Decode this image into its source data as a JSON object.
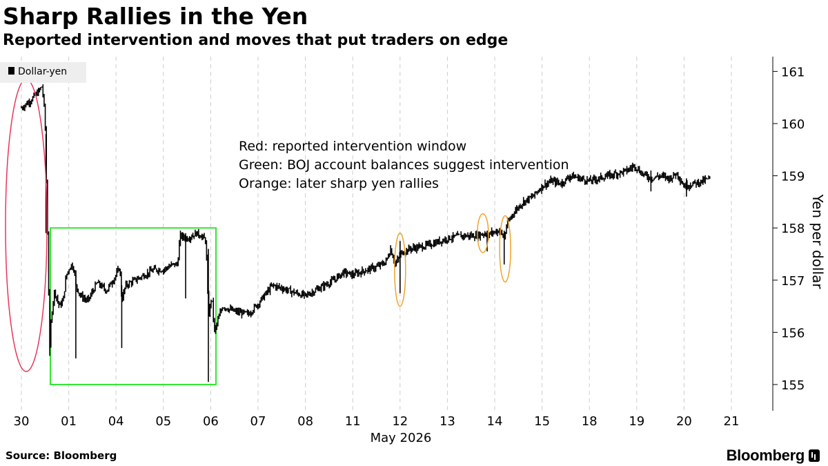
{
  "header": {
    "title": "Sharp Rallies in the Yen",
    "subtitle": "Reported intervention and moves that put traders on edge"
  },
  "footer": {
    "source": "Source: Bloomberg",
    "brand": "Bloomberg"
  },
  "colors": {
    "series": "#000000",
    "grid": "#cccccc",
    "red": "#e8355a",
    "green": "#33e633",
    "orange": "#f0a22a"
  },
  "chart_data": {
    "type": "line",
    "style": "intraday price bars (high-low)",
    "title": "Sharp Rallies in the Yen",
    "subtitle": "Reported intervention and moves that put traders on edge",
    "legend": {
      "entries": [
        "Dollar-yen"
      ],
      "placement": "top-left"
    },
    "xlabel": "May 2026",
    "ylabel": "Yen per dollar",
    "y_axis_side": "right",
    "ylim": [
      154.7,
      161.2
    ],
    "yticks": [
      155,
      156,
      157,
      158,
      159,
      160,
      161
    ],
    "x_tick_labels": [
      "30",
      "01",
      "04",
      "05",
      "06",
      "07",
      "08",
      "11",
      "12",
      "13",
      "14",
      "15",
      "18",
      "19",
      "20",
      "21"
    ],
    "grid": "vertical dashed",
    "annotations": [
      "Red: reported intervention window",
      "Green: BOJ account balances suggest intervention",
      "Orange: later sharp yen rallies"
    ],
    "series": [
      {
        "name": "Dollar-yen",
        "x_unit": "trading session (0 = 30)",
        "points": [
          [
            0.0,
            160.3
          ],
          [
            0.2,
            160.45
          ],
          [
            0.35,
            160.6
          ],
          [
            0.44,
            160.72
          ],
          [
            0.5,
            160.1
          ],
          [
            0.52,
            159.2
          ],
          [
            0.55,
            158.0
          ],
          [
            0.58,
            156.6
          ],
          [
            0.6,
            155.7
          ],
          [
            0.63,
            156.3
          ],
          [
            0.7,
            156.8
          ],
          [
            0.8,
            156.5
          ],
          [
            0.88,
            156.6
          ],
          [
            0.95,
            157.1
          ],
          [
            1.05,
            157.3
          ],
          [
            1.12,
            157.2
          ],
          [
            1.15,
            156.9
          ],
          [
            1.25,
            156.7
          ],
          [
            1.4,
            156.6
          ],
          [
            1.6,
            156.95
          ],
          [
            1.8,
            156.8
          ],
          [
            2.0,
            157.1
          ],
          [
            2.08,
            157.25
          ],
          [
            2.12,
            156.6
          ],
          [
            2.2,
            156.9
          ],
          [
            2.4,
            157.0
          ],
          [
            2.6,
            157.1
          ],
          [
            2.8,
            157.2
          ],
          [
            3.0,
            157.2
          ],
          [
            3.2,
            157.3
          ],
          [
            3.3,
            157.3
          ],
          [
            3.35,
            157.85
          ],
          [
            3.5,
            157.8
          ],
          [
            3.7,
            157.9
          ],
          [
            3.8,
            157.85
          ],
          [
            3.9,
            157.75
          ],
          [
            3.95,
            156.3
          ],
          [
            4.02,
            156.7
          ],
          [
            4.08,
            156.0
          ],
          [
            4.14,
            156.2
          ],
          [
            4.25,
            156.5
          ],
          [
            4.5,
            156.4
          ],
          [
            4.8,
            156.35
          ],
          [
            5.0,
            156.55
          ],
          [
            5.3,
            156.9
          ],
          [
            5.5,
            156.85
          ],
          [
            5.8,
            156.75
          ],
          [
            6.0,
            156.7
          ],
          [
            6.2,
            156.8
          ],
          [
            6.4,
            156.9
          ],
          [
            6.6,
            157.0
          ],
          [
            6.8,
            157.15
          ],
          [
            7.0,
            157.1
          ],
          [
            7.3,
            157.2
          ],
          [
            7.5,
            157.25
          ],
          [
            7.7,
            157.35
          ],
          [
            7.8,
            157.6
          ],
          [
            7.9,
            157.3
          ],
          [
            7.96,
            157.4
          ],
          [
            8.0,
            157.5
          ],
          [
            8.2,
            157.6
          ],
          [
            8.5,
            157.65
          ],
          [
            8.7,
            157.7
          ],
          [
            9.0,
            157.8
          ],
          [
            9.3,
            157.85
          ],
          [
            9.6,
            157.85
          ],
          [
            9.8,
            157.9
          ],
          [
            9.85,
            157.8
          ],
          [
            9.9,
            157.9
          ],
          [
            10.1,
            157.95
          ],
          [
            10.2,
            157.8
          ],
          [
            10.25,
            158.05
          ],
          [
            10.4,
            158.3
          ],
          [
            10.6,
            158.5
          ],
          [
            10.8,
            158.6
          ],
          [
            11.0,
            158.8
          ],
          [
            11.2,
            158.9
          ],
          [
            11.4,
            158.85
          ],
          [
            11.6,
            159.0
          ],
          [
            11.8,
            158.95
          ],
          [
            12.0,
            158.9
          ],
          [
            12.2,
            158.95
          ],
          [
            12.4,
            159.0
          ],
          [
            12.6,
            159.05
          ],
          [
            12.8,
            159.1
          ],
          [
            12.95,
            159.2
          ],
          [
            13.1,
            159.05
          ],
          [
            13.3,
            158.95
          ],
          [
            13.5,
            159.0
          ],
          [
            13.7,
            158.95
          ],
          [
            13.85,
            159.05
          ],
          [
            14.0,
            158.8
          ],
          [
            14.2,
            158.85
          ],
          [
            14.4,
            158.9
          ],
          [
            14.55,
            158.95
          ]
        ]
      }
    ]
  }
}
